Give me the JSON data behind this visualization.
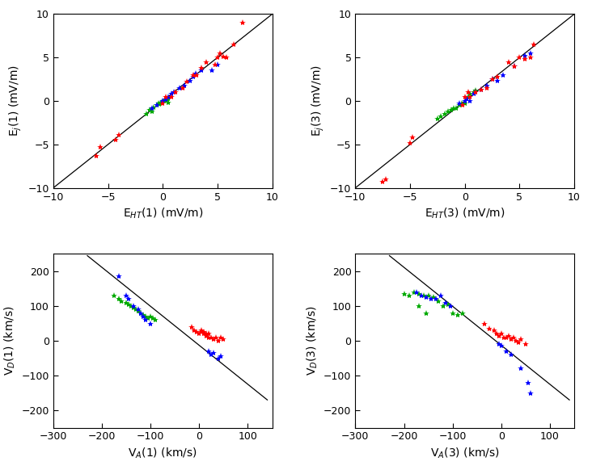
{
  "top_left": {
    "xlabel": "E$_{HT}$(1) (mV/m)",
    "ylabel": "E$_j$(1) (mV/m)",
    "xlim": [
      -10,
      10
    ],
    "ylim": [
      -10,
      10
    ],
    "xticks": [
      -10,
      -5,
      0,
      5,
      10
    ],
    "yticks": [
      -10,
      -5,
      0,
      5,
      10
    ],
    "line": [
      -10,
      10
    ],
    "red": [
      [
        -6.1,
        -6.3
      ],
      [
        -5.7,
        -5.3
      ],
      [
        -4.3,
        -4.5
      ],
      [
        -4.0,
        -3.9
      ],
      [
        0.0,
        -0.3
      ],
      [
        0.3,
        0.5
      ],
      [
        0.8,
        0.5
      ],
      [
        1.2,
        1.0
      ],
      [
        1.8,
        1.5
      ],
      [
        2.2,
        2.2
      ],
      [
        2.8,
        3.0
      ],
      [
        3.1,
        3.0
      ],
      [
        3.5,
        3.8
      ],
      [
        4.0,
        4.5
      ],
      [
        4.8,
        4.2
      ],
      [
        5.0,
        5.0
      ],
      [
        5.2,
        5.5
      ],
      [
        5.5,
        5.1
      ],
      [
        5.8,
        5.0
      ],
      [
        6.5,
        6.5
      ],
      [
        7.3,
        9.0
      ]
    ],
    "blue": [
      [
        -1.0,
        -0.8
      ],
      [
        -0.5,
        -0.5
      ],
      [
        0.0,
        0.0
      ],
      [
        0.3,
        0.2
      ],
      [
        0.5,
        0.5
      ],
      [
        0.8,
        0.8
      ],
      [
        1.0,
        1.0
      ],
      [
        1.5,
        1.5
      ],
      [
        2.0,
        1.8
      ],
      [
        2.5,
        2.3
      ],
      [
        2.8,
        2.8
      ],
      [
        3.0,
        3.2
      ],
      [
        3.5,
        3.5
      ],
      [
        4.5,
        3.5
      ],
      [
        5.0,
        4.2
      ]
    ],
    "green": [
      [
        -1.5,
        -1.5
      ],
      [
        -1.2,
        -1.0
      ],
      [
        -1.0,
        -1.2
      ],
      [
        -0.8,
        -0.7
      ],
      [
        -0.5,
        -0.5
      ],
      [
        -0.4,
        -0.3
      ],
      [
        -0.3,
        -0.4
      ],
      [
        -0.2,
        -0.2
      ],
      [
        -0.1,
        -0.2
      ],
      [
        0.0,
        -0.1
      ],
      [
        0.1,
        0.0
      ],
      [
        0.2,
        0.1
      ],
      [
        0.3,
        0.1
      ],
      [
        0.4,
        0.2
      ],
      [
        0.5,
        0.3
      ],
      [
        0.5,
        -0.2
      ]
    ]
  },
  "top_right": {
    "xlabel": "E$_{HT}$(3) (mV/m)",
    "ylabel": "E$_j$(3) (mV/m)",
    "xlim": [
      -10,
      10
    ],
    "ylim": [
      -10,
      10
    ],
    "xticks": [
      -10,
      -5,
      0,
      5,
      10
    ],
    "yticks": [
      -10,
      -5,
      0,
      5,
      10
    ],
    "line": [
      -10,
      10
    ],
    "red": [
      [
        -7.5,
        -9.3
      ],
      [
        -7.2,
        -9.0
      ],
      [
        -5.0,
        -4.8
      ],
      [
        -4.8,
        -4.2
      ],
      [
        -0.2,
        -0.5
      ],
      [
        0.0,
        0.5
      ],
      [
        0.3,
        1.0
      ],
      [
        0.5,
        0.5
      ],
      [
        1.0,
        1.0
      ],
      [
        1.5,
        1.3
      ],
      [
        2.0,
        1.5
      ],
      [
        2.5,
        2.5
      ],
      [
        3.0,
        2.8
      ],
      [
        4.0,
        4.5
      ],
      [
        4.5,
        4.0
      ],
      [
        5.0,
        5.0
      ],
      [
        5.5,
        4.8
      ],
      [
        6.0,
        5.0
      ],
      [
        6.3,
        6.5
      ]
    ],
    "blue": [
      [
        -0.5,
        -0.3
      ],
      [
        0.0,
        0.0
      ],
      [
        0.2,
        0.3
      ],
      [
        0.5,
        0.0
      ],
      [
        0.8,
        0.8
      ],
      [
        1.0,
        1.0
      ],
      [
        1.5,
        1.3
      ],
      [
        2.0,
        1.8
      ],
      [
        2.5,
        2.5
      ],
      [
        3.0,
        2.3
      ],
      [
        3.5,
        3.0
      ],
      [
        4.5,
        4.0
      ],
      [
        5.5,
        5.2
      ],
      [
        6.0,
        5.5
      ]
    ],
    "green": [
      [
        -2.5,
        -2.0
      ],
      [
        -2.2,
        -1.8
      ],
      [
        -1.8,
        -1.5
      ],
      [
        -1.5,
        -1.2
      ],
      [
        -1.2,
        -1.0
      ],
      [
        -1.0,
        -0.8
      ],
      [
        -0.8,
        -0.8
      ],
      [
        -0.5,
        -0.5
      ],
      [
        -0.3,
        -0.3
      ],
      [
        0.0,
        -0.3
      ],
      [
        0.2,
        0.3
      ],
      [
        0.3,
        0.5
      ],
      [
        0.5,
        0.8
      ],
      [
        0.8,
        1.0
      ],
      [
        1.0,
        1.2
      ]
    ]
  },
  "bot_left": {
    "xlabel": "V$_A$(1) (km/s)",
    "ylabel": "V$_D$(1) (km/s)",
    "xlim": [
      -300,
      150
    ],
    "ylim": [
      -250,
      250
    ],
    "xticks": [
      -300,
      -200,
      -100,
      0,
      100
    ],
    "yticks": [
      -200,
      -100,
      0,
      100,
      200
    ],
    "line_x": [
      -230,
      140
    ],
    "line_y": [
      245,
      -170
    ],
    "red": [
      [
        -15,
        40
      ],
      [
        -10,
        30
      ],
      [
        -5,
        25
      ],
      [
        0,
        20
      ],
      [
        5,
        25
      ],
      [
        5,
        30
      ],
      [
        10,
        20
      ],
      [
        10,
        25
      ],
      [
        15,
        15
      ],
      [
        15,
        20
      ],
      [
        20,
        10
      ],
      [
        20,
        20
      ],
      [
        25,
        10
      ],
      [
        30,
        5
      ],
      [
        35,
        10
      ],
      [
        40,
        0
      ],
      [
        45,
        10
      ],
      [
        50,
        5
      ]
    ],
    "blue": [
      [
        -165,
        185
      ],
      [
        -150,
        130
      ],
      [
        -145,
        120
      ],
      [
        -135,
        100
      ],
      [
        -125,
        90
      ],
      [
        -120,
        80
      ],
      [
        -115,
        70
      ],
      [
        -110,
        60
      ],
      [
        -100,
        50
      ],
      [
        20,
        -30
      ],
      [
        25,
        -40
      ],
      [
        30,
        -35
      ],
      [
        40,
        -50
      ],
      [
        45,
        -45
      ]
    ],
    "green": [
      [
        -175,
        130
      ],
      [
        -165,
        120
      ],
      [
        -160,
        115
      ],
      [
        -150,
        110
      ],
      [
        -145,
        105
      ],
      [
        -140,
        100
      ],
      [
        -135,
        95
      ],
      [
        -130,
        90
      ],
      [
        -125,
        85
      ],
      [
        -120,
        80
      ],
      [
        -115,
        75
      ],
      [
        -110,
        70
      ],
      [
        -105,
        65
      ],
      [
        -100,
        70
      ],
      [
        -95,
        65
      ],
      [
        -90,
        60
      ]
    ]
  },
  "bot_right": {
    "xlabel": "V$_A$(3) (km/s)",
    "ylabel": "V$_D$(3) (km/s)",
    "xlim": [
      -300,
      150
    ],
    "ylim": [
      -250,
      250
    ],
    "xticks": [
      -300,
      -200,
      -100,
      0,
      100
    ],
    "yticks": [
      -200,
      -100,
      0,
      100,
      200
    ],
    "line_x": [
      -230,
      140
    ],
    "line_y": [
      245,
      -170
    ],
    "red": [
      [
        -35,
        50
      ],
      [
        -25,
        35
      ],
      [
        -15,
        30
      ],
      [
        -10,
        20
      ],
      [
        -5,
        15
      ],
      [
        0,
        20
      ],
      [
        5,
        10
      ],
      [
        10,
        10
      ],
      [
        15,
        15
      ],
      [
        20,
        5
      ],
      [
        25,
        10
      ],
      [
        30,
        0
      ],
      [
        35,
        -5
      ],
      [
        40,
        5
      ],
      [
        50,
        -10
      ]
    ],
    "blue": [
      [
        -175,
        140
      ],
      [
        -165,
        130
      ],
      [
        -155,
        125
      ],
      [
        -145,
        120
      ],
      [
        -135,
        120
      ],
      [
        -125,
        130
      ],
      [
        -115,
        110
      ],
      [
        -105,
        100
      ],
      [
        -5,
        -10
      ],
      [
        0,
        -15
      ],
      [
        10,
        -30
      ],
      [
        20,
        -40
      ],
      [
        40,
        -80
      ],
      [
        55,
        -120
      ],
      [
        60,
        -150
      ]
    ],
    "green": [
      [
        -200,
        135
      ],
      [
        -190,
        130
      ],
      [
        -180,
        140
      ],
      [
        -170,
        135
      ],
      [
        -160,
        130
      ],
      [
        -150,
        130
      ],
      [
        -140,
        125
      ],
      [
        -130,
        115
      ],
      [
        -120,
        100
      ],
      [
        -110,
        105
      ],
      [
        -100,
        80
      ],
      [
        -90,
        75
      ],
      [
        -80,
        80
      ],
      [
        -170,
        100
      ],
      [
        -155,
        80
      ]
    ]
  },
  "colors": {
    "red": "#ff0000",
    "blue": "#0000ff",
    "green": "#00aa00"
  },
  "marker": "*",
  "markersize": 6,
  "fontsize": 10,
  "tick_fontsize": 9
}
